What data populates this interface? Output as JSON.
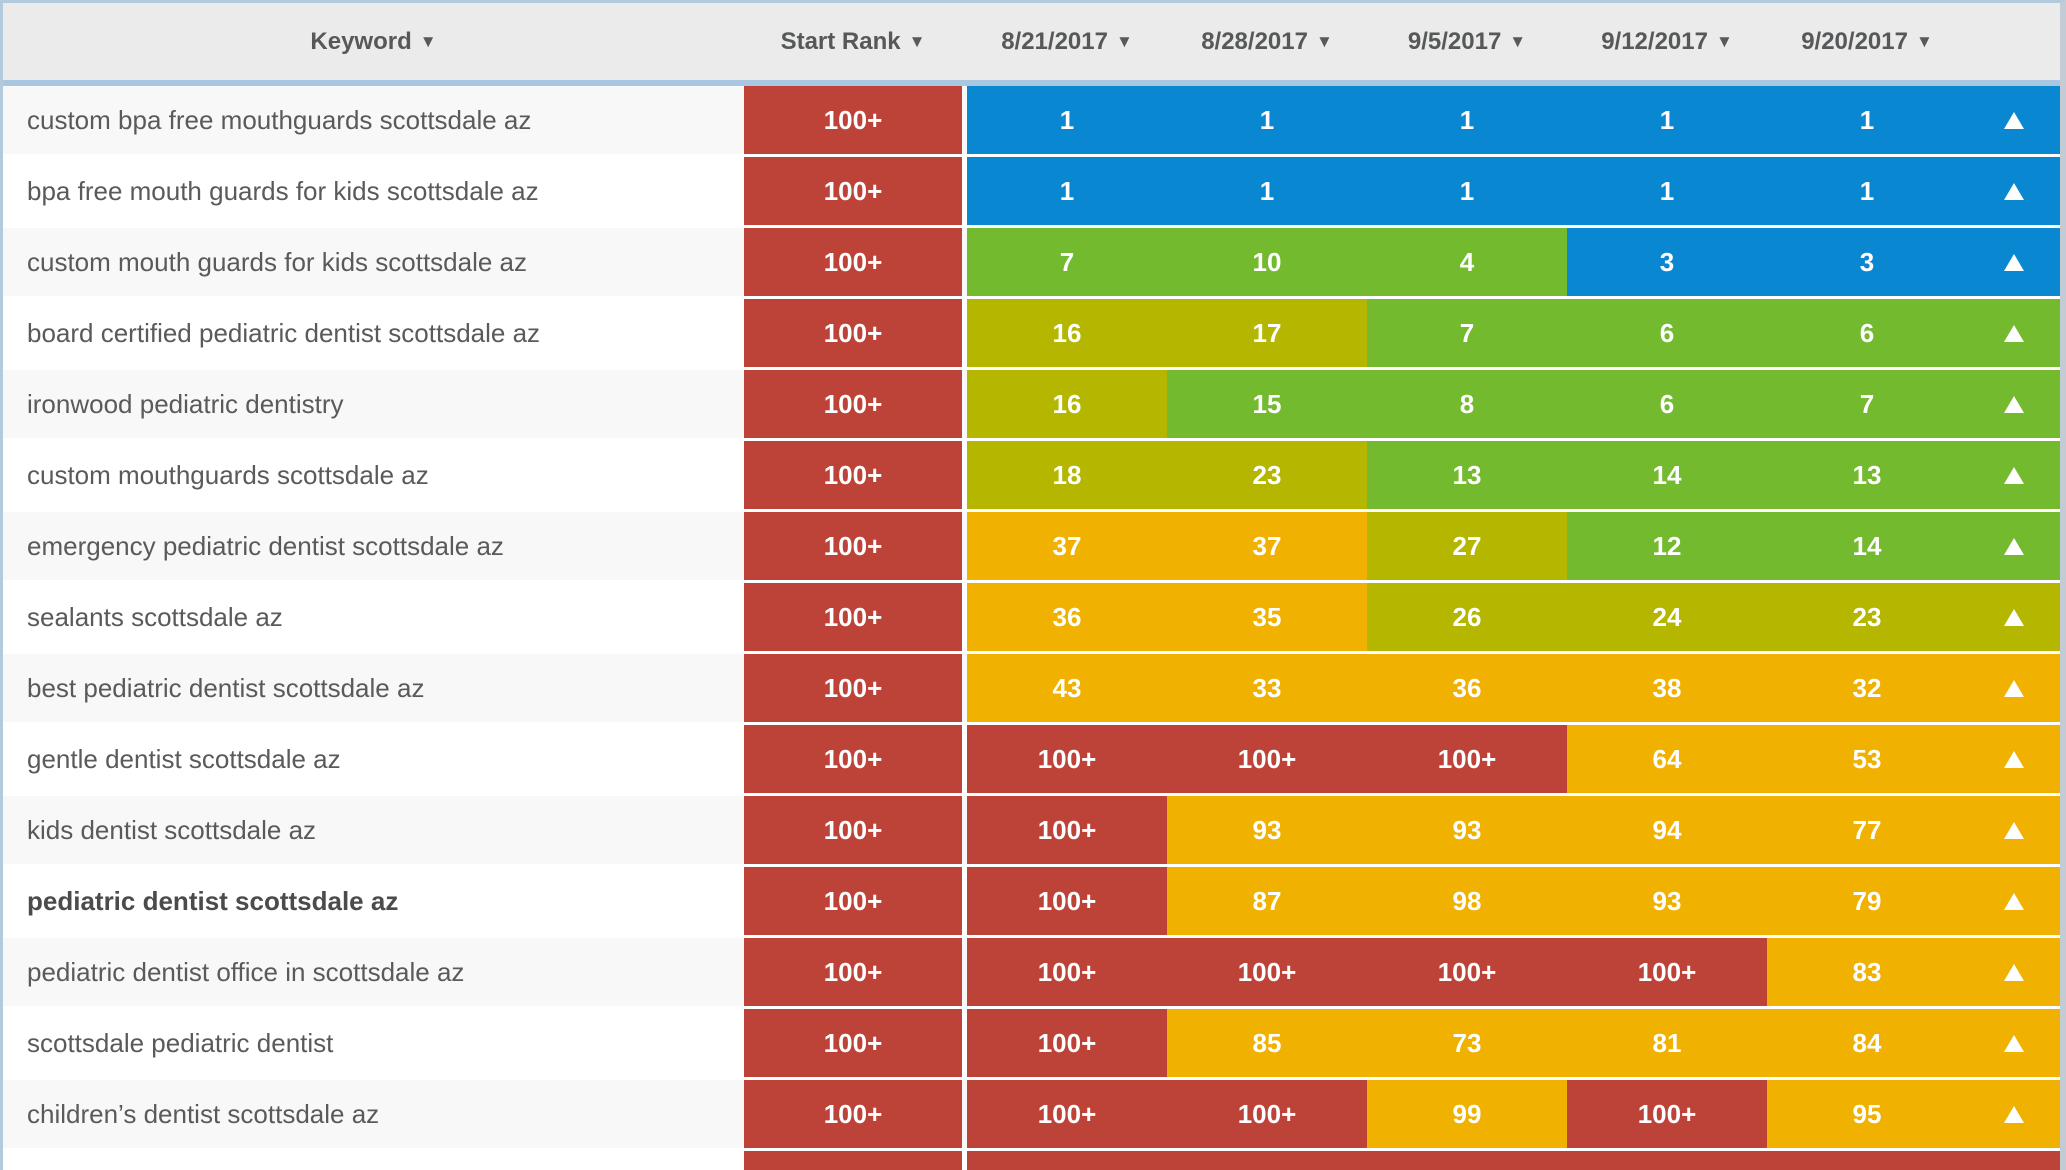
{
  "colors": {
    "blue": "#0a87d1",
    "green": "#74ba2f",
    "olive": "#b4b600",
    "orange": "#f1b100",
    "red": "#bd4339",
    "header_bg": "#ebebeb",
    "header_divider": "#a9c7e0",
    "row_odd": "#f8f8f8",
    "row_even": "#ffffff"
  },
  "header": {
    "sort_icon": "▼",
    "keyword_label": "Keyword",
    "start_rank_label": "Start Rank",
    "dates": [
      "8/21/2017",
      "8/28/2017",
      "9/5/2017",
      "9/12/2017",
      "9/20/2017"
    ]
  },
  "rows": [
    {
      "keyword": "custom bpa free mouthguards scottsdale az",
      "bold": false,
      "start_rank": "100+",
      "cells": [
        {
          "value": "1",
          "color": "blue"
        },
        {
          "value": "1",
          "color": "blue"
        },
        {
          "value": "1",
          "color": "blue"
        },
        {
          "value": "1",
          "color": "blue"
        },
        {
          "value": "1",
          "color": "blue"
        }
      ],
      "trend": {
        "icon": "up-arrow",
        "color": "blue"
      }
    },
    {
      "keyword": "bpa free mouth guards for kids scottsdale az",
      "bold": false,
      "start_rank": "100+",
      "cells": [
        {
          "value": "1",
          "color": "blue"
        },
        {
          "value": "1",
          "color": "blue"
        },
        {
          "value": "1",
          "color": "blue"
        },
        {
          "value": "1",
          "color": "blue"
        },
        {
          "value": "1",
          "color": "blue"
        }
      ],
      "trend": {
        "icon": "up-arrow",
        "color": "blue"
      }
    },
    {
      "keyword": "custom mouth guards for kids scottsdale az",
      "bold": false,
      "start_rank": "100+",
      "cells": [
        {
          "value": "7",
          "color": "green"
        },
        {
          "value": "10",
          "color": "green"
        },
        {
          "value": "4",
          "color": "green"
        },
        {
          "value": "3",
          "color": "blue"
        },
        {
          "value": "3",
          "color": "blue"
        }
      ],
      "trend": {
        "icon": "up-arrow",
        "color": "blue"
      }
    },
    {
      "keyword": "board certified pediatric dentist scottsdale az",
      "bold": false,
      "start_rank": "100+",
      "cells": [
        {
          "value": "16",
          "color": "olive"
        },
        {
          "value": "17",
          "color": "olive"
        },
        {
          "value": "7",
          "color": "green"
        },
        {
          "value": "6",
          "color": "green"
        },
        {
          "value": "6",
          "color": "green"
        }
      ],
      "trend": {
        "icon": "up-arrow",
        "color": "green"
      }
    },
    {
      "keyword": "ironwood pediatric dentistry",
      "bold": false,
      "start_rank": "100+",
      "cells": [
        {
          "value": "16",
          "color": "olive"
        },
        {
          "value": "15",
          "color": "green"
        },
        {
          "value": "8",
          "color": "green"
        },
        {
          "value": "6",
          "color": "green"
        },
        {
          "value": "7",
          "color": "green"
        }
      ],
      "trend": {
        "icon": "up-arrow",
        "color": "green"
      }
    },
    {
      "keyword": "custom mouthguards scottsdale az",
      "bold": false,
      "start_rank": "100+",
      "cells": [
        {
          "value": "18",
          "color": "olive"
        },
        {
          "value": "23",
          "color": "olive"
        },
        {
          "value": "13",
          "color": "green"
        },
        {
          "value": "14",
          "color": "green"
        },
        {
          "value": "13",
          "color": "green"
        }
      ],
      "trend": {
        "icon": "up-arrow",
        "color": "green"
      }
    },
    {
      "keyword": "emergency pediatric dentist scottsdale az",
      "bold": false,
      "start_rank": "100+",
      "cells": [
        {
          "value": "37",
          "color": "orange"
        },
        {
          "value": "37",
          "color": "orange"
        },
        {
          "value": "27",
          "color": "olive"
        },
        {
          "value": "12",
          "color": "green"
        },
        {
          "value": "14",
          "color": "green"
        }
      ],
      "trend": {
        "icon": "up-arrow",
        "color": "green"
      }
    },
    {
      "keyword": "sealants scottsdale az",
      "bold": false,
      "start_rank": "100+",
      "cells": [
        {
          "value": "36",
          "color": "orange"
        },
        {
          "value": "35",
          "color": "orange"
        },
        {
          "value": "26",
          "color": "olive"
        },
        {
          "value": "24",
          "color": "olive"
        },
        {
          "value": "23",
          "color": "olive"
        }
      ],
      "trend": {
        "icon": "up-arrow",
        "color": "olive"
      }
    },
    {
      "keyword": "best pediatric dentist scottsdale az",
      "bold": false,
      "start_rank": "100+",
      "cells": [
        {
          "value": "43",
          "color": "orange"
        },
        {
          "value": "33",
          "color": "orange"
        },
        {
          "value": "36",
          "color": "orange"
        },
        {
          "value": "38",
          "color": "orange"
        },
        {
          "value": "32",
          "color": "orange"
        }
      ],
      "trend": {
        "icon": "up-arrow",
        "color": "orange"
      }
    },
    {
      "keyword": "gentle dentist scottsdale az",
      "bold": false,
      "start_rank": "100+",
      "cells": [
        {
          "value": "100+",
          "color": "red"
        },
        {
          "value": "100+",
          "color": "red"
        },
        {
          "value": "100+",
          "color": "red"
        },
        {
          "value": "64",
          "color": "orange"
        },
        {
          "value": "53",
          "color": "orange"
        }
      ],
      "trend": {
        "icon": "up-arrow",
        "color": "orange"
      }
    },
    {
      "keyword": "kids dentist scottsdale az",
      "bold": false,
      "start_rank": "100+",
      "cells": [
        {
          "value": "100+",
          "color": "red"
        },
        {
          "value": "93",
          "color": "orange"
        },
        {
          "value": "93",
          "color": "orange"
        },
        {
          "value": "94",
          "color": "orange"
        },
        {
          "value": "77",
          "color": "orange"
        }
      ],
      "trend": {
        "icon": "up-arrow",
        "color": "orange"
      }
    },
    {
      "keyword": "pediatric dentist scottsdale az",
      "bold": true,
      "start_rank": "100+",
      "cells": [
        {
          "value": "100+",
          "color": "red"
        },
        {
          "value": "87",
          "color": "orange"
        },
        {
          "value": "98",
          "color": "orange"
        },
        {
          "value": "93",
          "color": "orange"
        },
        {
          "value": "79",
          "color": "orange"
        }
      ],
      "trend": {
        "icon": "up-arrow",
        "color": "orange"
      }
    },
    {
      "keyword": "pediatric dentist office in scottsdale az",
      "bold": false,
      "start_rank": "100+",
      "cells": [
        {
          "value": "100+",
          "color": "red"
        },
        {
          "value": "100+",
          "color": "red"
        },
        {
          "value": "100+",
          "color": "red"
        },
        {
          "value": "100+",
          "color": "red"
        },
        {
          "value": "83",
          "color": "orange"
        }
      ],
      "trend": {
        "icon": "up-arrow",
        "color": "orange"
      }
    },
    {
      "keyword": "scottsdale pediatric dentist",
      "bold": false,
      "start_rank": "100+",
      "cells": [
        {
          "value": "100+",
          "color": "red"
        },
        {
          "value": "85",
          "color": "orange"
        },
        {
          "value": "73",
          "color": "orange"
        },
        {
          "value": "81",
          "color": "orange"
        },
        {
          "value": "84",
          "color": "orange"
        }
      ],
      "trend": {
        "icon": "up-arrow",
        "color": "orange"
      }
    },
    {
      "keyword": "children’s dentist scottsdale az",
      "bold": false,
      "start_rank": "100+",
      "cells": [
        {
          "value": "100+",
          "color": "red"
        },
        {
          "value": "100+",
          "color": "red"
        },
        {
          "value": "99",
          "color": "orange"
        },
        {
          "value": "100+",
          "color": "red"
        },
        {
          "value": "95",
          "color": "orange"
        }
      ],
      "trend": {
        "icon": "up-arrow",
        "color": "orange"
      }
    }
  ],
  "partial_row": {
    "start_rank_color": "red",
    "band_color": "red"
  }
}
